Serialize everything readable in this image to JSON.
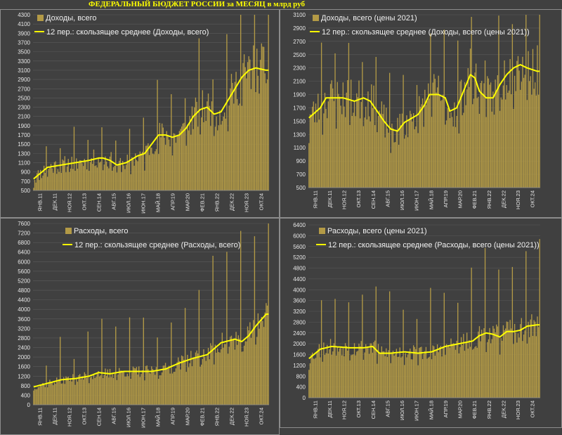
{
  "title": "ФЕДЕРАЛЬНЫЙ БЮДЖЕТ РОССИИ за МЕСЯЦ в млрд руб",
  "colors": {
    "bar": "#b39a46",
    "line": "#ffff00",
    "grid": "#5a5a5a",
    "axis": "#8c8c8c"
  },
  "x_tick_labels": [
    "ЯНВ.11",
    "ДЕК.11",
    "НОЯ.12",
    "ОКТ.13",
    "СЕН.14",
    "АВГ.15",
    "ИЮЛ.16",
    "ИЮН.17",
    "МАЙ.18",
    "АПР.19",
    "МАР.20",
    "ФЕВ.21",
    "ЯНВ.22",
    "ДЕК.22",
    "НОЯ.23",
    "ОКТ.24"
  ],
  "chart_data": [
    {
      "type": "bar",
      "legend_position": "top-left",
      "ylim": [
        500,
        4300
      ],
      "ystep": 200,
      "series": [
        {
          "name": "Доходы, всего",
          "kind": "bar",
          "anchors": [
            [
              0,
              750
            ],
            [
              12,
              1000
            ],
            [
              24,
              1050
            ],
            [
              36,
              1100
            ],
            [
              48,
              1150
            ],
            [
              56,
              1200
            ],
            [
              60,
              1200
            ],
            [
              66,
              1150
            ],
            [
              72,
              1050
            ],
            [
              80,
              1100
            ],
            [
              90,
              1250
            ],
            [
              96,
              1300
            ],
            [
              102,
              1500
            ],
            [
              108,
              1700
            ],
            [
              114,
              1700
            ],
            [
              120,
              1650
            ],
            [
              126,
              1700
            ],
            [
              132,
              1850
            ],
            [
              138,
              2100
            ],
            [
              144,
              2250
            ],
            [
              150,
              2300
            ],
            [
              156,
              2150
            ],
            [
              162,
              2200
            ],
            [
              168,
              2450
            ],
            [
              174,
              2700
            ],
            [
              180,
              2950
            ],
            [
              186,
              3100
            ],
            [
              192,
              3150
            ],
            [
              201,
              3100
            ]
          ]
        },
        {
          "name": "12 пер.: скользящее среднее (Доходы, всего)",
          "kind": "line"
        }
      ]
    },
    {
      "type": "bar",
      "legend_position": "top-left",
      "ylim": [
        500,
        3100
      ],
      "ystep": 200,
      "series": [
        {
          "name": "Доходы, всего (цены 2021)",
          "kind": "bar",
          "anchors": [
            [
              0,
              1550
            ],
            [
              10,
              1700
            ],
            [
              15,
              1850
            ],
            [
              30,
              1850
            ],
            [
              40,
              1800
            ],
            [
              48,
              1850
            ],
            [
              54,
              1800
            ],
            [
              60,
              1650
            ],
            [
              66,
              1500
            ],
            [
              72,
              1380
            ],
            [
              78,
              1350
            ],
            [
              84,
              1480
            ],
            [
              90,
              1540
            ],
            [
              96,
              1600
            ],
            [
              102,
              1750
            ],
            [
              106,
              1900
            ],
            [
              114,
              1900
            ],
            [
              120,
              1850
            ],
            [
              124,
              1650
            ],
            [
              130,
              1700
            ],
            [
              136,
              1950
            ],
            [
              142,
              2200
            ],
            [
              146,
              2150
            ],
            [
              150,
              1950
            ],
            [
              156,
              1850
            ],
            [
              162,
              1850
            ],
            [
              168,
              2050
            ],
            [
              174,
              2200
            ],
            [
              180,
              2300
            ],
            [
              186,
              2350
            ],
            [
              192,
              2300
            ],
            [
              201,
              2250
            ]
          ]
        },
        {
          "name": "12 пер.: скользящее среднее (Доходы, всего (цены 2021))",
          "kind": "line"
        }
      ]
    },
    {
      "type": "bar",
      "legend_position": "top-left",
      "ylim": [
        0,
        7600
      ],
      "ystep": 400,
      "series": [
        {
          "name": "Расходы, всего",
          "kind": "bar",
          "anchors": [
            [
              0,
              750
            ],
            [
              12,
              900
            ],
            [
              24,
              1050
            ],
            [
              36,
              1100
            ],
            [
              48,
              1200
            ],
            [
              56,
              1350
            ],
            [
              66,
              1300
            ],
            [
              78,
              1400
            ],
            [
              90,
              1400
            ],
            [
              102,
              1400
            ],
            [
              114,
              1500
            ],
            [
              126,
              1750
            ],
            [
              138,
              1950
            ],
            [
              150,
              2100
            ],
            [
              162,
              2600
            ],
            [
              174,
              2750
            ],
            [
              180,
              2650
            ],
            [
              186,
              2900
            ],
            [
              192,
              3300
            ],
            [
              201,
              3800
            ]
          ]
        },
        {
          "name": "12 пер.: скользящее среднее (Расходы, всего)",
          "kind": "line"
        }
      ]
    },
    {
      "type": "bar",
      "legend_position": "top-left",
      "ylim": [
        0,
        6400
      ],
      "ystep": 400,
      "series": [
        {
          "name": "Расходы, всего (цены 2021)",
          "kind": "bar",
          "anchors": [
            [
              0,
              1450
            ],
            [
              10,
              1800
            ],
            [
              20,
              1900
            ],
            [
              36,
              1850
            ],
            [
              48,
              1850
            ],
            [
              56,
              1900
            ],
            [
              62,
              1650
            ],
            [
              72,
              1650
            ],
            [
              84,
              1700
            ],
            [
              96,
              1650
            ],
            [
              108,
              1700
            ],
            [
              120,
              1900
            ],
            [
              132,
              2000
            ],
            [
              144,
              2100
            ],
            [
              150,
              2300
            ],
            [
              156,
              2400
            ],
            [
              162,
              2350
            ],
            [
              168,
              2250
            ],
            [
              174,
              2450
            ],
            [
              180,
              2450
            ],
            [
              186,
              2500
            ],
            [
              192,
              2650
            ],
            [
              201,
              2700
            ]
          ]
        },
        {
          "name": "12 пер.: скользящее среднее (Расходы, всего (цены 2021))",
          "kind": "line"
        }
      ]
    }
  ]
}
